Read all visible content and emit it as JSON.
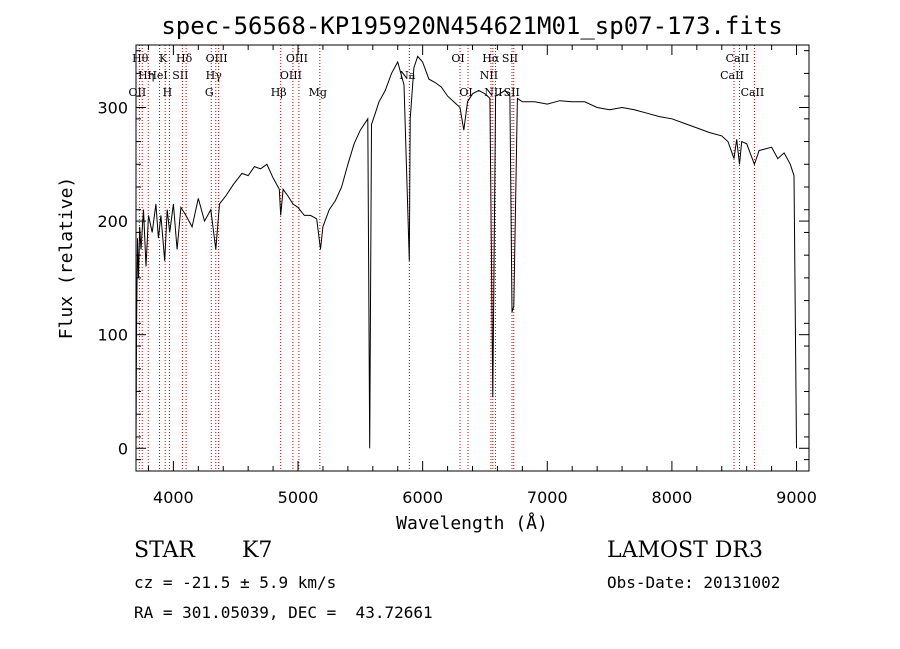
{
  "chart_data": {
    "type": "line",
    "title": "spec-56568-KP195920N454621M01_sp07-173.fits",
    "xlabel": "Wavelength (Å)",
    "ylabel": "Flux (relative)",
    "xlim": [
      3700,
      9100
    ],
    "ylim": [
      -20,
      355
    ],
    "xticks": [
      4000,
      5000,
      6000,
      7000,
      8000,
      9000
    ],
    "yticks": [
      0,
      100,
      200,
      300
    ],
    "grid": false,
    "line_color": "#000000",
    "marker_color": "#cc0000",
    "series": [
      {
        "values": [
          [
            3700,
            0
          ],
          [
            3705,
            110
          ],
          [
            3712,
            185
          ],
          [
            3720,
            150
          ],
          [
            3730,
            195
          ],
          [
            3740,
            175
          ],
          [
            3760,
            210
          ],
          [
            3780,
            160
          ],
          [
            3800,
            205
          ],
          [
            3830,
            190
          ],
          [
            3860,
            215
          ],
          [
            3880,
            185
          ],
          [
            3900,
            205
          ],
          [
            3930,
            165
          ],
          [
            3950,
            210
          ],
          [
            3970,
            190
          ],
          [
            4000,
            215
          ],
          [
            4030,
            175
          ],
          [
            4060,
            212
          ],
          [
            4100,
            205
          ],
          [
            4150,
            195
          ],
          [
            4200,
            220
          ],
          [
            4250,
            200
          ],
          [
            4300,
            210
          ],
          [
            4340,
            175
          ],
          [
            4370,
            215
          ],
          [
            4420,
            222
          ],
          [
            4480,
            232
          ],
          [
            4550,
            242
          ],
          [
            4600,
            240
          ],
          [
            4650,
            248
          ],
          [
            4700,
            246
          ],
          [
            4750,
            250
          ],
          [
            4800,
            238
          ],
          [
            4850,
            228
          ],
          [
            4861,
            205
          ],
          [
            4880,
            228
          ],
          [
            4920,
            222
          ],
          [
            4960,
            215
          ],
          [
            5000,
            212
          ],
          [
            5050,
            205
          ],
          [
            5100,
            205
          ],
          [
            5150,
            202
          ],
          [
            5180,
            175
          ],
          [
            5200,
            195
          ],
          [
            5250,
            210
          ],
          [
            5300,
            218
          ],
          [
            5350,
            230
          ],
          [
            5400,
            250
          ],
          [
            5450,
            268
          ],
          [
            5500,
            280
          ],
          [
            5560,
            290
          ],
          [
            5575,
            0
          ],
          [
            5590,
            285
          ],
          [
            5620,
            295
          ],
          [
            5650,
            305
          ],
          [
            5700,
            315
          ],
          [
            5750,
            330
          ],
          [
            5800,
            340
          ],
          [
            5850,
            320
          ],
          [
            5893,
            165
          ],
          [
            5900,
            290
          ],
          [
            5930,
            335
          ],
          [
            5960,
            345
          ],
          [
            6000,
            340
          ],
          [
            6050,
            325
          ],
          [
            6100,
            322
          ],
          [
            6150,
            318
          ],
          [
            6200,
            310
          ],
          [
            6250,
            305
          ],
          [
            6300,
            300
          ],
          [
            6330,
            280
          ],
          [
            6360,
            305
          ],
          [
            6400,
            312
          ],
          [
            6450,
            315
          ],
          [
            6500,
            312
          ],
          [
            6540,
            308
          ],
          [
            6563,
            45
          ],
          [
            6585,
            310
          ],
          [
            6620,
            312
          ],
          [
            6660,
            315
          ],
          [
            6700,
            310
          ],
          [
            6717,
            120
          ],
          [
            6731,
            125
          ],
          [
            6760,
            308
          ],
          [
            6800,
            305
          ],
          [
            6900,
            305
          ],
          [
            7000,
            303
          ],
          [
            7100,
            306
          ],
          [
            7200,
            305
          ],
          [
            7300,
            305
          ],
          [
            7400,
            300
          ],
          [
            7500,
            298
          ],
          [
            7600,
            300
          ],
          [
            7700,
            298
          ],
          [
            7800,
            295
          ],
          [
            7900,
            292
          ],
          [
            8000,
            290
          ],
          [
            8100,
            286
          ],
          [
            8200,
            282
          ],
          [
            8300,
            278
          ],
          [
            8400,
            275
          ],
          [
            8450,
            270
          ],
          [
            8498,
            255
          ],
          [
            8520,
            272
          ],
          [
            8542,
            250
          ],
          [
            8560,
            270
          ],
          [
            8600,
            268
          ],
          [
            8662,
            250
          ],
          [
            8700,
            262
          ],
          [
            8800,
            265
          ],
          [
            8850,
            255
          ],
          [
            8900,
            260
          ],
          [
            8950,
            250
          ],
          [
            8980,
            240
          ],
          [
            9000,
            0
          ]
        ]
      }
    ],
    "line_markers": [
      {
        "x": 3727,
        "labels": [
          "OII"
        ],
        "row": 2
      },
      {
        "x": 3750,
        "labels": [
          "Hθ"
        ],
        "row": 0
      },
      {
        "x": 3798,
        "labels": [
          "Hη"
        ],
        "row": 1
      },
      {
        "x": 3889,
        "labels": [
          "HeI"
        ],
        "row": 1
      },
      {
        "x": 3934,
        "labels": [
          "K"
        ],
        "row": 0
      },
      {
        "x": 3968,
        "labels": [
          "H"
        ],
        "row": 2
      },
      {
        "x": 4072,
        "labels": [
          "SII"
        ],
        "row": 1
      },
      {
        "x": 4102,
        "labels": [
          "Hδ"
        ],
        "row": 0
      },
      {
        "x": 4304,
        "labels": [
          "G"
        ],
        "row": 2
      },
      {
        "x": 4340,
        "labels": [
          "Hγ"
        ],
        "row": 1
      },
      {
        "x": 4363,
        "labels": [
          "OIII"
        ],
        "row": 0
      },
      {
        "x": 4861,
        "labels": [
          "Hβ"
        ],
        "row": 2
      },
      {
        "x": 4959,
        "labels": [
          "OIII"
        ],
        "row": 1
      },
      {
        "x": 5007,
        "labels": [
          "OIII"
        ],
        "row": 0
      },
      {
        "x": 5175,
        "labels": [
          "Mg"
        ],
        "row": 2
      },
      {
        "x": 5893,
        "labels": [
          "Na"
        ],
        "row": 1
      },
      {
        "x": 6300,
        "labels": [
          "OI"
        ],
        "row": 0
      },
      {
        "x": 6364,
        "labels": [
          "OI"
        ],
        "row": 2
      },
      {
        "x": 6548,
        "labels": [
          "NII"
        ],
        "row": 1
      },
      {
        "x": 6563,
        "labels": [
          "Hα"
        ],
        "row": 0
      },
      {
        "x": 6584,
        "labels": [
          "NII"
        ],
        "row": 2
      },
      {
        "x": 6717,
        "labels": [
          "SII"
        ],
        "row": 0
      },
      {
        "x": 6731,
        "labels": [
          "SII"
        ],
        "row": 2
      },
      {
        "x": 8498,
        "labels": [
          "CaII"
        ],
        "row": 1
      },
      {
        "x": 8542,
        "labels": [
          "CaII"
        ],
        "row": 0
      },
      {
        "x": 8662,
        "labels": [
          "CaII"
        ],
        "row": 2
      }
    ]
  },
  "info": {
    "class_label": "STAR",
    "subclass": "K7",
    "cz": "cz = -21.5 ± 5.9 km/s",
    "radec": "RA = 301.05039, DEC =  43.72661",
    "survey": "LAMOST DR3",
    "obs_date": "Obs-Date: 20131002"
  }
}
